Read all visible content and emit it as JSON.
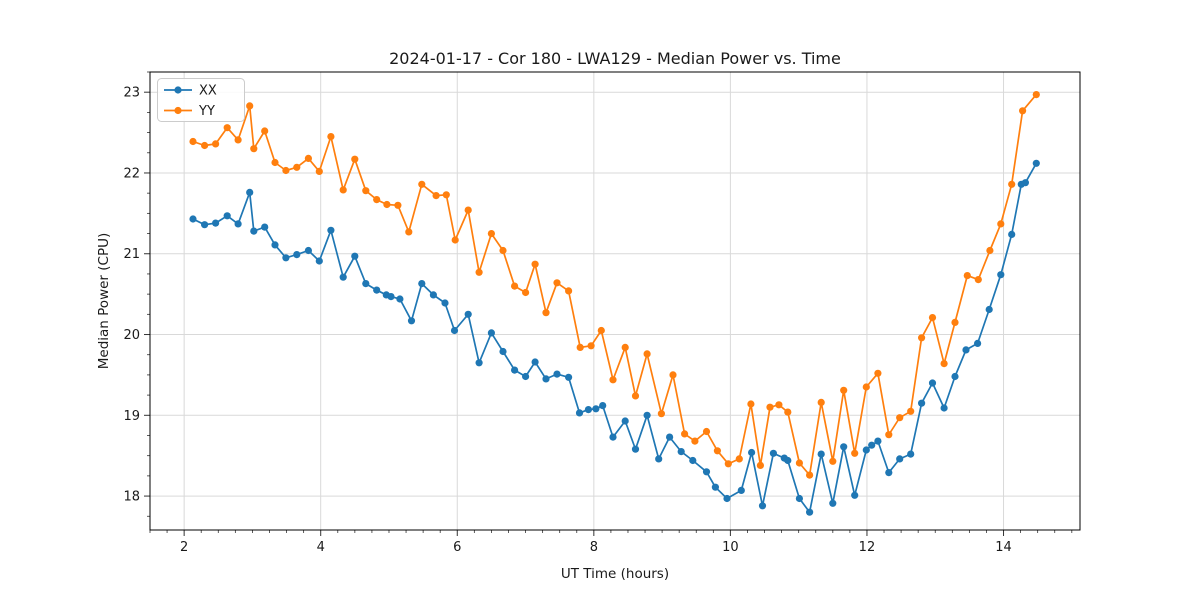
{
  "figure": {
    "background": "#ffffff",
    "frame_color": "#000000",
    "grid_color": "#d9d9d9",
    "tick_color": "#333333"
  },
  "chart_data": {
    "type": "line",
    "title": "2024-01-17 - Cor 180 - LWA129 - Median Power vs. Time",
    "xlabel": "UT Time (hours)",
    "ylabel": "Median Power (CPU)",
    "xlim": [
      1.5,
      15.12
    ],
    "ylim": [
      17.58,
      23.25
    ],
    "x_ticks": [
      2,
      4,
      6,
      8,
      10,
      12,
      14
    ],
    "y_ticks": [
      18,
      19,
      20,
      21,
      22,
      23
    ],
    "minor_tick_step": 0.25,
    "grid": true,
    "legend_position": "upper-left",
    "marker": "circle",
    "series": [
      {
        "name": "XX",
        "color": "#1f77b4",
        "points": [
          [
            2.13,
            21.43
          ],
          [
            2.3,
            21.36
          ],
          [
            2.46,
            21.38
          ],
          [
            2.63,
            21.47
          ],
          [
            2.79,
            21.37
          ],
          [
            2.96,
            21.76
          ],
          [
            3.02,
            21.28
          ],
          [
            3.18,
            21.33
          ],
          [
            3.33,
            21.11
          ],
          [
            3.49,
            20.95
          ],
          [
            3.65,
            20.99
          ],
          [
            3.82,
            21.04
          ],
          [
            3.98,
            20.91
          ],
          [
            4.15,
            21.29
          ],
          [
            4.33,
            20.71
          ],
          [
            4.5,
            20.97
          ],
          [
            4.66,
            20.63
          ],
          [
            4.82,
            20.55
          ],
          [
            4.96,
            20.49
          ],
          [
            5.03,
            20.47
          ],
          [
            5.16,
            20.44
          ],
          [
            5.33,
            20.17
          ],
          [
            5.48,
            20.63
          ],
          [
            5.65,
            20.49
          ],
          [
            5.82,
            20.39
          ],
          [
            5.96,
            20.05
          ],
          [
            6.16,
            20.25
          ],
          [
            6.32,
            19.65
          ],
          [
            6.5,
            20.02
          ],
          [
            6.67,
            19.79
          ],
          [
            6.84,
            19.56
          ],
          [
            7.0,
            19.48
          ],
          [
            7.14,
            19.66
          ],
          [
            7.3,
            19.45
          ],
          [
            7.46,
            19.51
          ],
          [
            7.63,
            19.47
          ],
          [
            7.79,
            19.03
          ],
          [
            7.92,
            19.07
          ],
          [
            8.03,
            19.08
          ],
          [
            8.13,
            19.12
          ],
          [
            8.28,
            18.73
          ],
          [
            8.46,
            18.93
          ],
          [
            8.61,
            18.58
          ],
          [
            8.78,
            19.0
          ],
          [
            8.95,
            18.46
          ],
          [
            9.11,
            18.73
          ],
          [
            9.28,
            18.55
          ],
          [
            9.45,
            18.44
          ],
          [
            9.65,
            18.3
          ],
          [
            9.78,
            18.11
          ],
          [
            9.95,
            17.97
          ],
          [
            10.16,
            18.07
          ],
          [
            10.31,
            18.54
          ],
          [
            10.47,
            17.88
          ],
          [
            10.63,
            18.53
          ],
          [
            10.79,
            18.47
          ],
          [
            10.84,
            18.44
          ],
          [
            11.01,
            17.97
          ],
          [
            11.16,
            17.8
          ],
          [
            11.33,
            18.52
          ],
          [
            11.5,
            17.91
          ],
          [
            11.66,
            18.61
          ],
          [
            11.82,
            18.01
          ],
          [
            11.99,
            18.57
          ],
          [
            12.07,
            18.63
          ],
          [
            12.16,
            18.68
          ],
          [
            12.32,
            18.29
          ],
          [
            12.48,
            18.46
          ],
          [
            12.64,
            18.52
          ],
          [
            12.8,
            19.15
          ],
          [
            12.96,
            19.4
          ],
          [
            13.13,
            19.09
          ],
          [
            13.29,
            19.48
          ],
          [
            13.45,
            19.81
          ],
          [
            13.62,
            19.89
          ],
          [
            13.79,
            20.31
          ],
          [
            13.96,
            20.74
          ],
          [
            14.12,
            21.24
          ],
          [
            14.26,
            21.86
          ],
          [
            14.32,
            21.88
          ],
          [
            14.48,
            22.12
          ]
        ]
      },
      {
        "name": "YY",
        "color": "#ff7f0e",
        "points": [
          [
            2.13,
            22.39
          ],
          [
            2.3,
            22.34
          ],
          [
            2.46,
            22.36
          ],
          [
            2.63,
            22.56
          ],
          [
            2.79,
            22.41
          ],
          [
            2.96,
            22.83
          ],
          [
            3.02,
            22.3
          ],
          [
            3.18,
            22.52
          ],
          [
            3.33,
            22.13
          ],
          [
            3.49,
            22.03
          ],
          [
            3.65,
            22.07
          ],
          [
            3.82,
            22.18
          ],
          [
            3.98,
            22.02
          ],
          [
            4.15,
            22.45
          ],
          [
            4.33,
            21.79
          ],
          [
            4.5,
            22.17
          ],
          [
            4.66,
            21.78
          ],
          [
            4.82,
            21.67
          ],
          [
            4.97,
            21.61
          ],
          [
            5.13,
            21.6
          ],
          [
            5.29,
            21.27
          ],
          [
            5.48,
            21.86
          ],
          [
            5.69,
            21.72
          ],
          [
            5.84,
            21.73
          ],
          [
            5.97,
            21.17
          ],
          [
            6.16,
            21.54
          ],
          [
            6.32,
            20.77
          ],
          [
            6.5,
            21.25
          ],
          [
            6.67,
            21.04
          ],
          [
            6.84,
            20.6
          ],
          [
            7.0,
            20.52
          ],
          [
            7.14,
            20.87
          ],
          [
            7.3,
            20.27
          ],
          [
            7.46,
            20.64
          ],
          [
            7.63,
            20.54
          ],
          [
            7.8,
            19.84
          ],
          [
            7.96,
            19.86
          ],
          [
            8.11,
            20.05
          ],
          [
            8.28,
            19.44
          ],
          [
            8.46,
            19.84
          ],
          [
            8.61,
            19.24
          ],
          [
            8.78,
            19.76
          ],
          [
            8.99,
            19.02
          ],
          [
            9.16,
            19.5
          ],
          [
            9.33,
            18.77
          ],
          [
            9.48,
            18.68
          ],
          [
            9.65,
            18.8
          ],
          [
            9.81,
            18.56
          ],
          [
            9.97,
            18.4
          ],
          [
            10.13,
            18.46
          ],
          [
            10.3,
            19.14
          ],
          [
            10.44,
            18.38
          ],
          [
            10.58,
            19.1
          ],
          [
            10.71,
            19.13
          ],
          [
            10.84,
            19.04
          ],
          [
            11.01,
            18.41
          ],
          [
            11.16,
            18.26
          ],
          [
            11.33,
            19.16
          ],
          [
            11.5,
            18.43
          ],
          [
            11.66,
            19.31
          ],
          [
            11.82,
            18.53
          ],
          [
            11.99,
            19.35
          ],
          [
            12.16,
            19.52
          ],
          [
            12.32,
            18.76
          ],
          [
            12.48,
            18.97
          ],
          [
            12.64,
            19.05
          ],
          [
            12.8,
            19.96
          ],
          [
            12.96,
            20.21
          ],
          [
            13.13,
            19.64
          ],
          [
            13.29,
            20.15
          ],
          [
            13.47,
            20.73
          ],
          [
            13.63,
            20.68
          ],
          [
            13.8,
            21.04
          ],
          [
            13.96,
            21.37
          ],
          [
            14.12,
            21.86
          ],
          [
            14.28,
            22.77
          ],
          [
            14.48,
            22.97
          ]
        ]
      }
    ]
  }
}
